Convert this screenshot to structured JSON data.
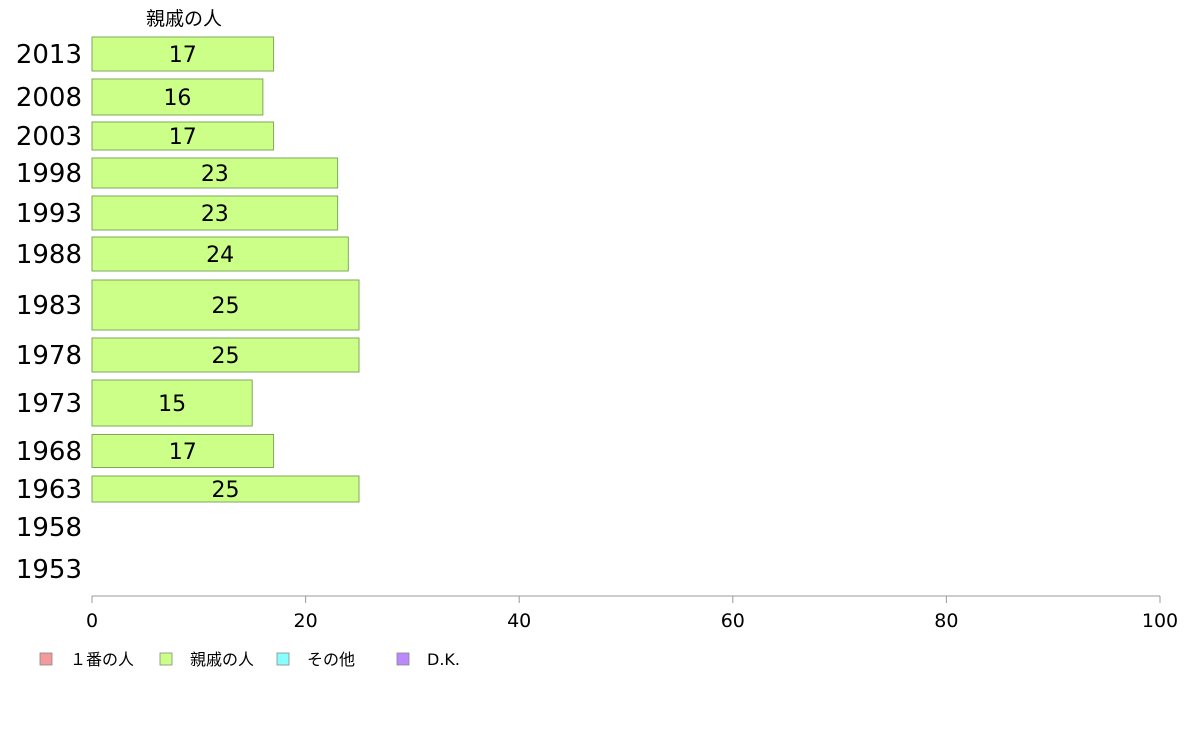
{
  "chart_data": {
    "type": "bar",
    "orientation": "horizontal",
    "categories": [
      "2013",
      "2008",
      "2003",
      "1998",
      "1993",
      "1988",
      "1983",
      "1978",
      "1973",
      "1968",
      "1963",
      "1958",
      "1953"
    ],
    "series": [
      {
        "name": "親戚の人",
        "color": "#ccff88",
        "values": [
          17,
          16,
          17,
          23,
          23,
          24,
          25,
          25,
          15,
          17,
          25,
          null,
          null
        ]
      }
    ],
    "series_title": "親戚の人",
    "xlim": [
      0,
      100
    ],
    "xticks": [
      "0",
      "20",
      "40",
      "60",
      "80",
      "100"
    ],
    "grid": false,
    "legend_position": "bottom-left",
    "legend": [
      {
        "label": "１番の人",
        "color": "#f59a9a"
      },
      {
        "label": "親戚の人",
        "color": "#ccff88"
      },
      {
        "label": "その他",
        "color": "#88ffff"
      },
      {
        "label": "D.K.",
        "color": "#bb88ff"
      }
    ]
  }
}
